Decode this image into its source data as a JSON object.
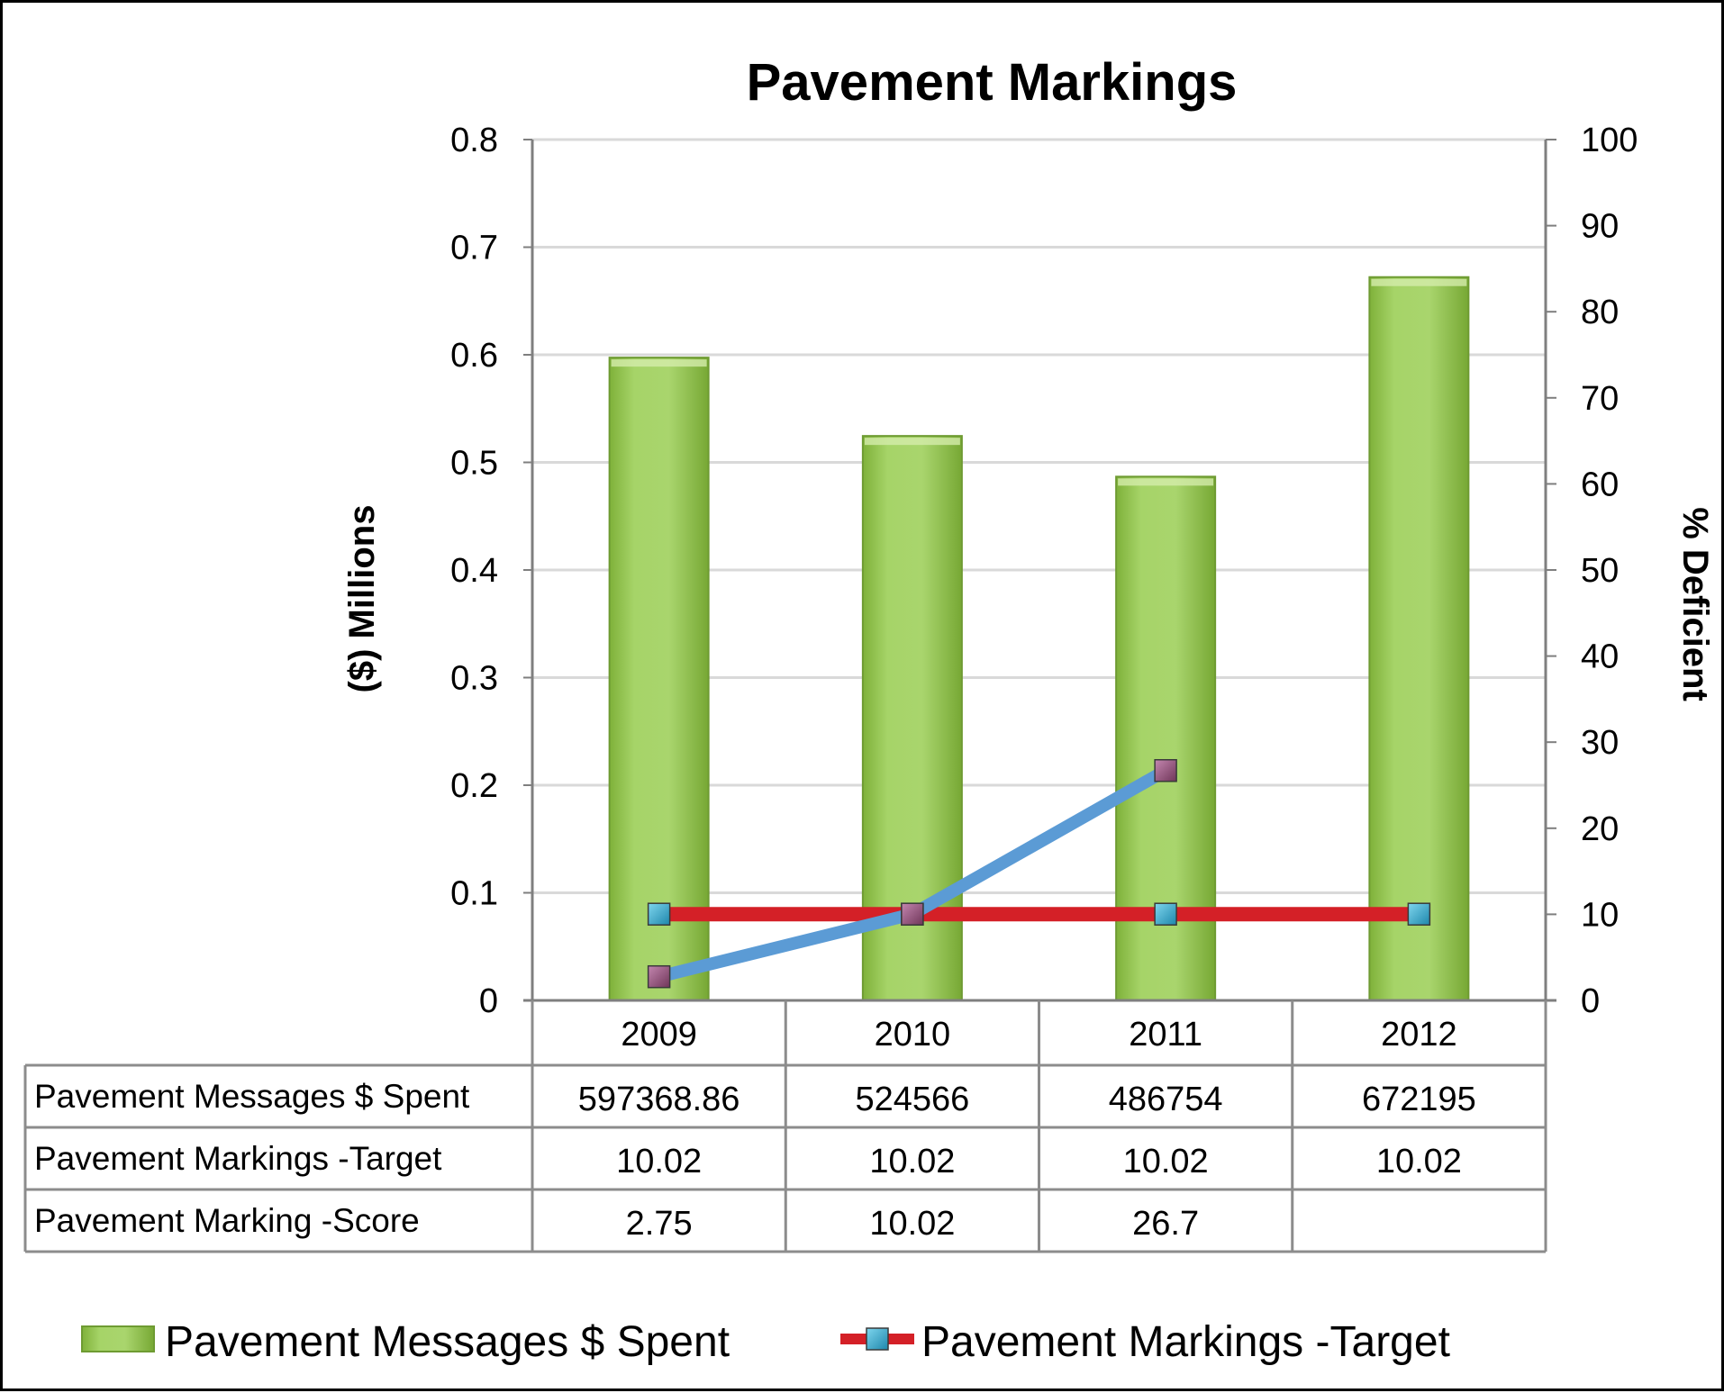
{
  "chart_data": {
    "type": "bar",
    "title": "Pavement Markings",
    "ylabel": "($) Millions",
    "y2label": "% Deficient",
    "ylim": [
      0,
      0.8
    ],
    "y2lim": [
      0,
      100
    ],
    "yticks": [
      "0",
      "0.1",
      "0.2",
      "0.3",
      "0.4",
      "0.5",
      "0.6",
      "0.7",
      "0.8"
    ],
    "y2ticks": [
      "0",
      "10",
      "20",
      "30",
      "40",
      "50",
      "60",
      "70",
      "80",
      "90",
      "100"
    ],
    "categories": [
      "2009",
      "2010",
      "2011",
      "2012"
    ],
    "grid": true,
    "series": [
      {
        "name": "Pavement Messages $ Spent",
        "type": "bar",
        "axis": "left",
        "color": "#9fcf5a",
        "values": [
          0.59736886,
          0.524566,
          0.486754,
          0.672195
        ],
        "table_values": [
          "597368.86",
          "524566",
          "486754",
          "672195"
        ]
      },
      {
        "name": "Pavement Markings -Target",
        "type": "line",
        "axis": "right",
        "color": "#d42027",
        "marker_color": "#27a9cf",
        "values": [
          10.02,
          10.02,
          10.02,
          10.02
        ],
        "table_values": [
          "10.02",
          "10.02",
          "10.02",
          "10.02"
        ]
      },
      {
        "name": "Pavement Marking -Score",
        "type": "line",
        "axis": "right",
        "color": "#5b9bd5",
        "marker_color": "#8e4b74",
        "values": [
          2.75,
          10.02,
          26.7,
          null
        ],
        "table_values": [
          "2.75",
          "10.02",
          "26.7",
          ""
        ]
      }
    ],
    "legend": {
      "position": "bottom",
      "entries": [
        "Pavement Messages $ Spent",
        "Pavement Markings -Target"
      ]
    }
  }
}
